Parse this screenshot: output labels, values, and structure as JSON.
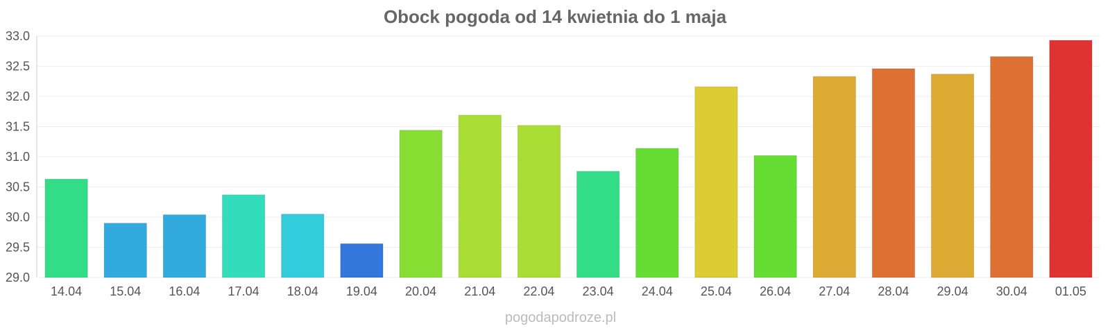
{
  "chart_data": {
    "type": "bar",
    "title": "Obock pogoda od 14 kwietnia do 1 maja",
    "xlabel": "",
    "ylabel": "",
    "ylim": [
      29.0,
      33.0
    ],
    "y_ticks": [
      "29.0",
      "29.5",
      "30.0",
      "30.5",
      "31.0",
      "31.5",
      "32.0",
      "32.5",
      "33.0"
    ],
    "grid": true,
    "categories": [
      "14.04",
      "15.04",
      "16.04",
      "17.04",
      "18.04",
      "19.04",
      "20.04",
      "21.04",
      "22.04",
      "23.04",
      "24.04",
      "25.04",
      "26.04",
      "27.04",
      "28.04",
      "29.04",
      "30.04",
      "01.05"
    ],
    "values": [
      30.63,
      29.9,
      30.04,
      30.37,
      30.05,
      29.56,
      31.44,
      31.69,
      31.52,
      30.76,
      31.14,
      32.16,
      31.02,
      32.33,
      32.46,
      32.37,
      32.66,
      32.93
    ],
    "bar_colors": [
      "#33dd88",
      "#33aadd",
      "#33aadd",
      "#33ddbb",
      "#33ccdd",
      "#3377dd",
      "#88dd33",
      "#aadd33",
      "#aadd33",
      "#33dd88",
      "#66dd33",
      "#ddcc33",
      "#66dd33",
      "#ddaa33",
      "#dd7033",
      "#ddaa33",
      "#dd7033",
      "#dd3333"
    ]
  },
  "watermark": "pogodapodroze.pl"
}
